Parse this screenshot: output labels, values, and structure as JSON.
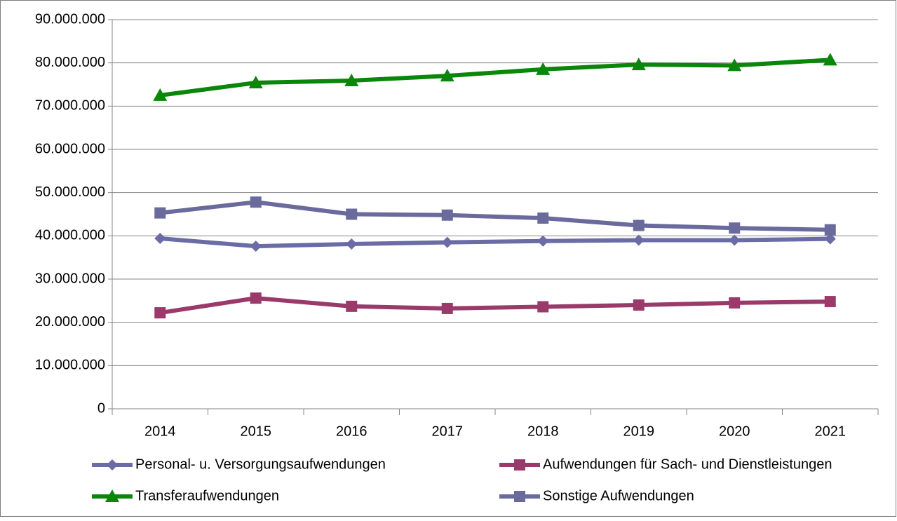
{
  "chart_data": {
    "type": "line",
    "categories": [
      "2014",
      "2015",
      "2016",
      "2017",
      "2018",
      "2019",
      "2020",
      "2021"
    ],
    "series": [
      {
        "name": "Personal- u. Versorgungsaufwendungen",
        "color": "#6b6ba6",
        "marker": "diamond",
        "values": [
          39400000,
          37600000,
          38100000,
          38500000,
          38800000,
          39000000,
          39000000,
          39300000
        ]
      },
      {
        "name": "Aufwendungen für Sach- und Dienstleistungen",
        "color": "#9a3a6a",
        "marker": "square",
        "values": [
          22200000,
          25600000,
          23700000,
          23200000,
          23600000,
          24000000,
          24500000,
          24800000
        ]
      },
      {
        "name": "Transferaufwendungen",
        "color": "#0a860a",
        "marker": "triangle",
        "values": [
          72500000,
          75400000,
          75900000,
          77000000,
          78500000,
          79600000,
          79400000,
          80700000
        ]
      },
      {
        "name": "Sonstige Aufwendungen",
        "color": "#6a6a9c",
        "marker": "square",
        "values": [
          45300000,
          47800000,
          45000000,
          44800000,
          44100000,
          42400000,
          41800000,
          41400000
        ]
      }
    ],
    "ylim": [
      0,
      90000000
    ],
    "yticks": [
      0,
      {
        "value": 10000000,
        "label": "10.000.000"
      },
      {
        "value": 20000000,
        "label": "20.000.000"
      },
      {
        "value": 30000000,
        "label": "30.000.000"
      },
      {
        "value": 40000000,
        "label": "40.000.000"
      },
      {
        "value": 50000000,
        "label": "50.000.000"
      },
      {
        "value": 60000000,
        "label": "60.000.000"
      },
      {
        "value": 70000000,
        "label": "70.000.000"
      },
      {
        "value": 80000000,
        "label": "80.000.000"
      },
      {
        "value": 90000000,
        "label": "90.000.000"
      }
    ],
    "grid": true,
    "legend": "bottom"
  }
}
